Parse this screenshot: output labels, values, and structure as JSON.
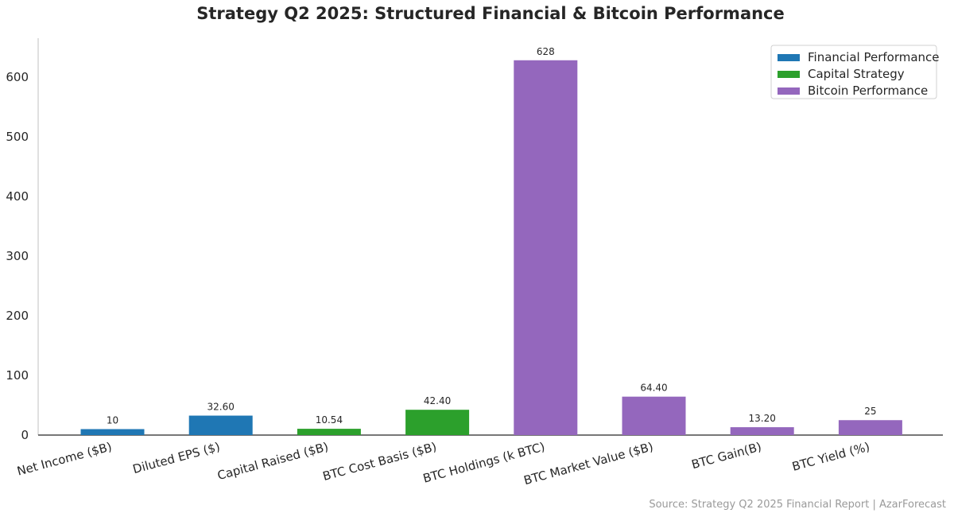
{
  "chart_data": {
    "type": "bar",
    "title": "Strategy Q2 2025: Structured Financial & Bitcoin Performance",
    "xlabel": "",
    "ylabel": "",
    "ylim": [
      0,
      665
    ],
    "yticks": [
      0,
      100,
      200,
      300,
      400,
      500,
      600
    ],
    "grid": false,
    "legend_position": "top-right",
    "categories": [
      "Net Income ($B)",
      "Diluted EPS ($)",
      "Capital Raised ($B)",
      "BTC Cost Basis ($B)",
      "BTC Holdings (k BTC)",
      "BTC Market Value ($B)",
      "BTC Gain(B)",
      "BTC Yield (%)"
    ],
    "values": [
      10,
      32.6,
      10.54,
      42.4,
      628,
      64.4,
      13.2,
      25
    ],
    "value_labels": [
      "10",
      "32.60",
      "10.54",
      "42.40",
      "628",
      "64.40",
      "13.20",
      "25"
    ],
    "groups": [
      "Financial Performance",
      "Financial Performance",
      "Capital Strategy",
      "Capital Strategy",
      "Bitcoin Performance",
      "Bitcoin Performance",
      "Bitcoin Performance",
      "Bitcoin Performance"
    ],
    "legend": [
      {
        "name": "Financial Performance",
        "color": "#1f77b4"
      },
      {
        "name": "Capital Strategy",
        "color": "#2ca02c"
      },
      {
        "name": "Bitcoin Performance",
        "color": "#9467bd"
      }
    ],
    "source": "Source: Strategy Q2 2025 Financial Report | AzarForecast"
  }
}
